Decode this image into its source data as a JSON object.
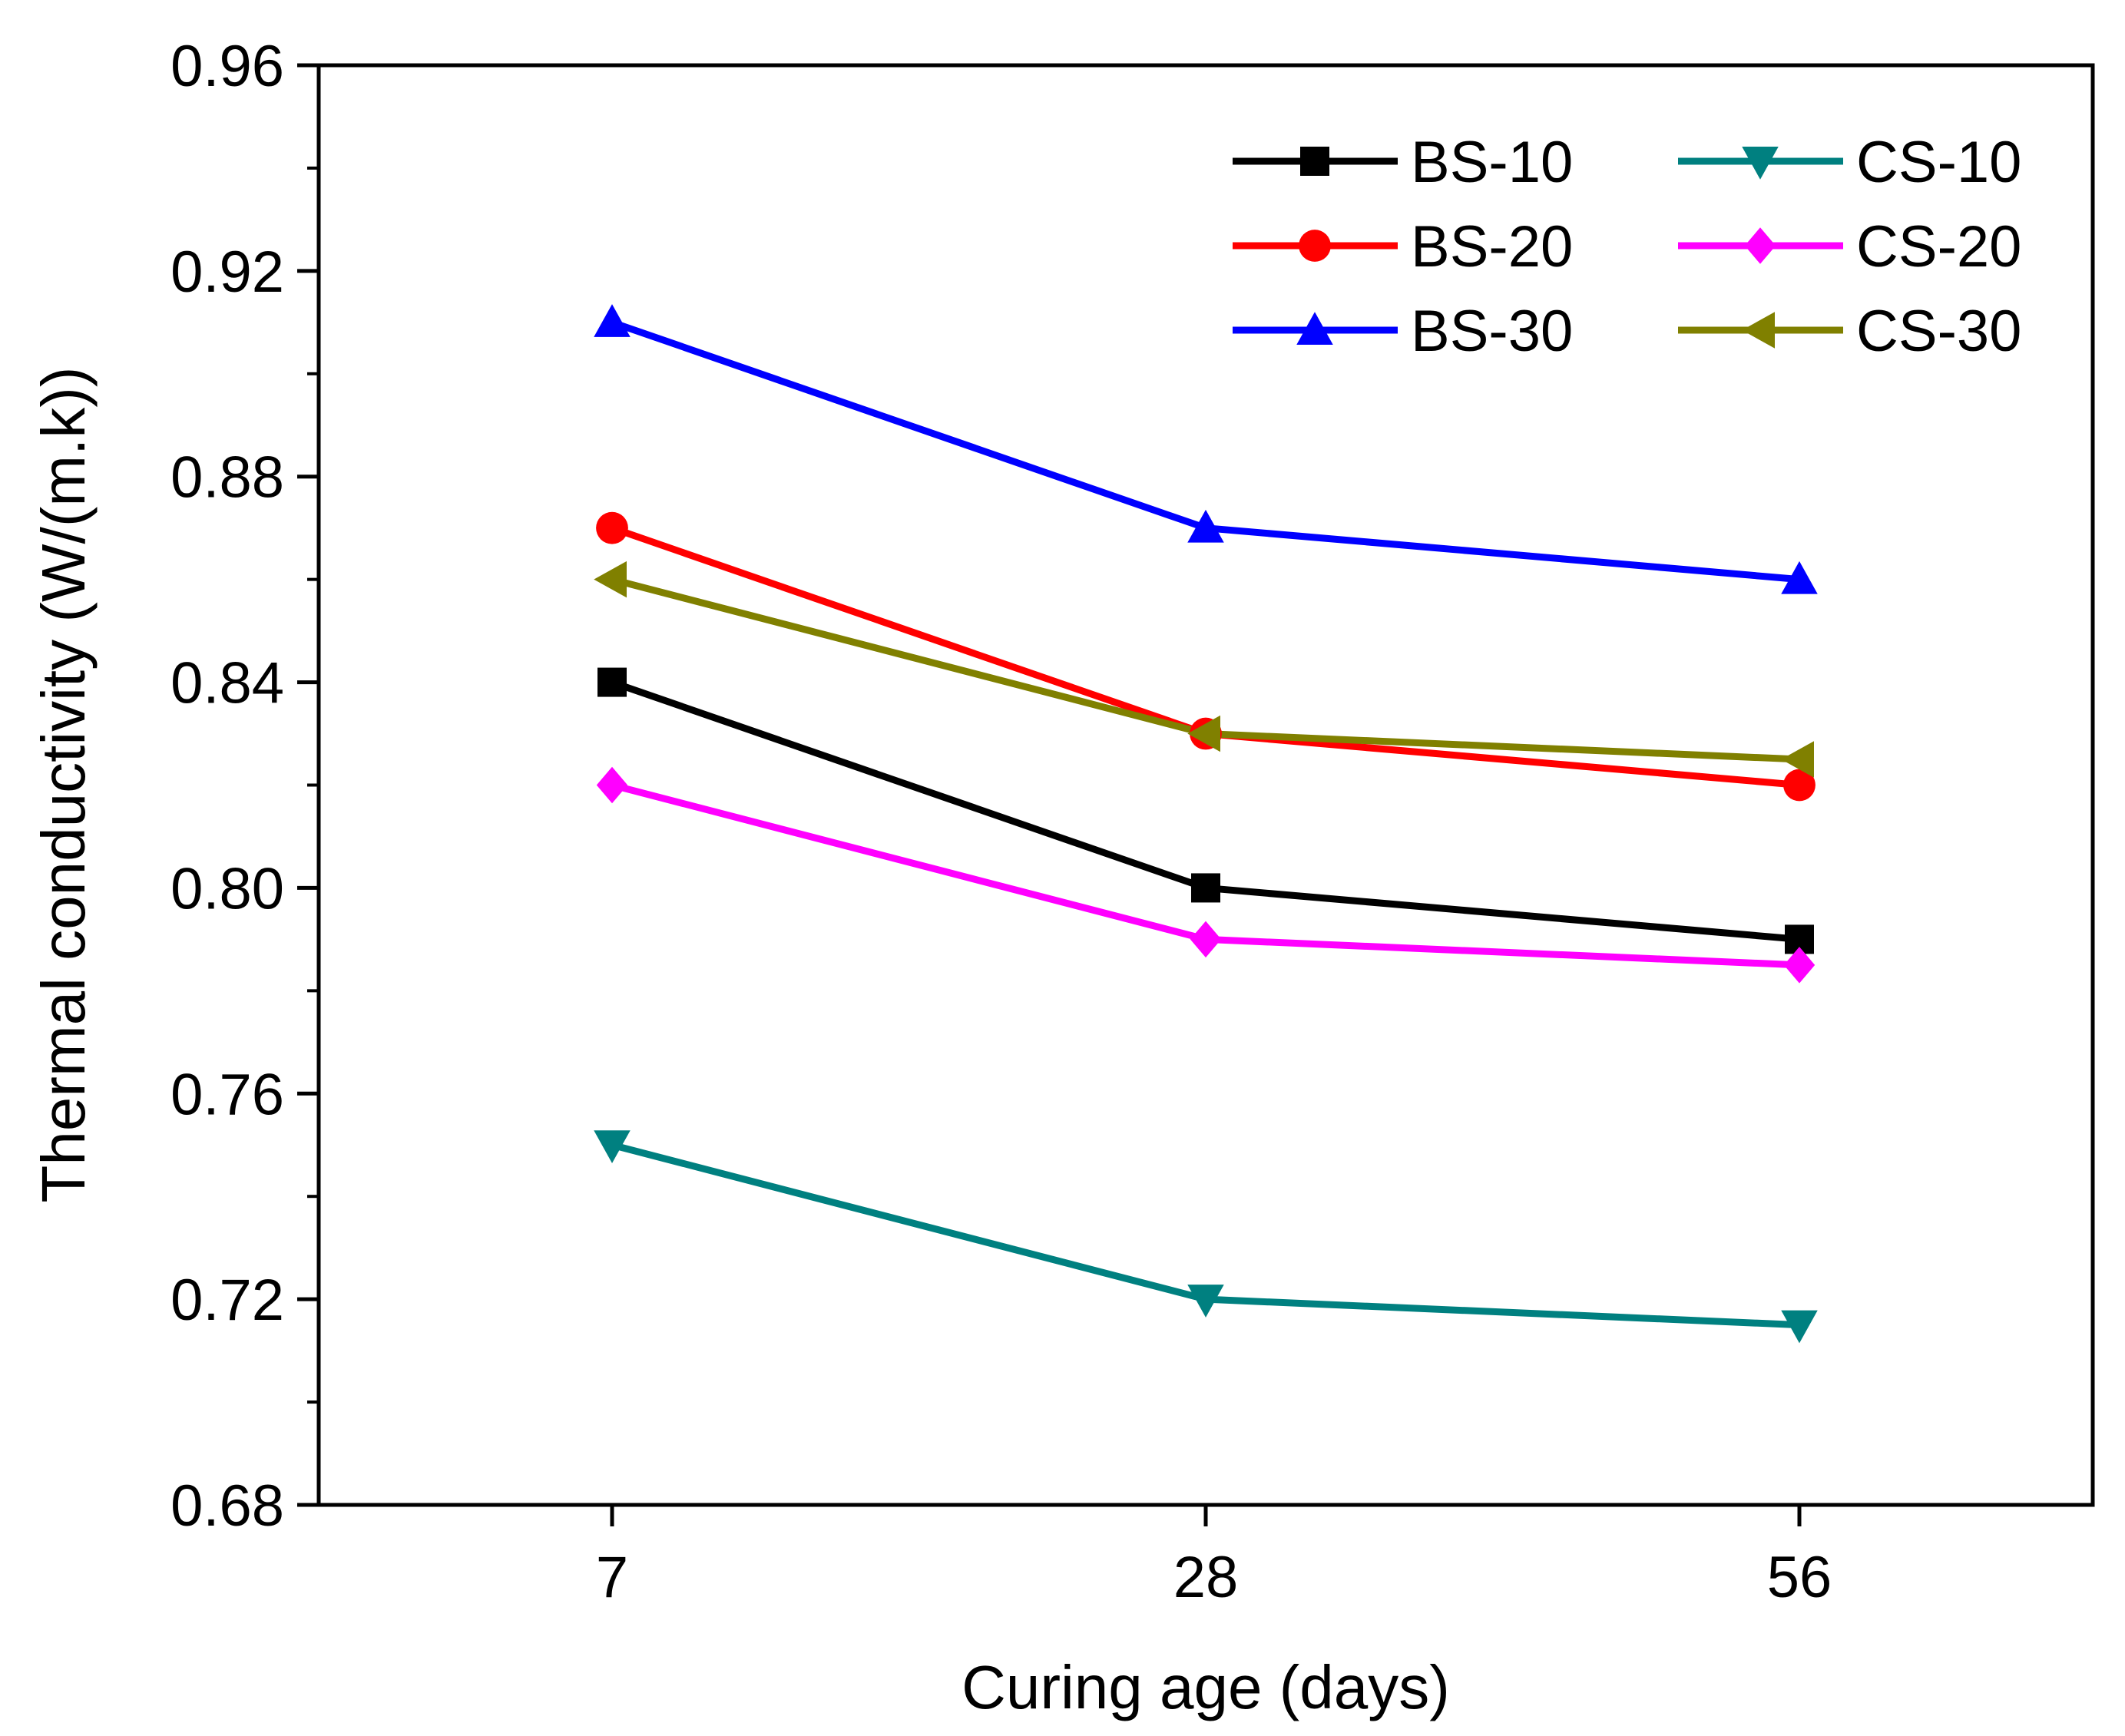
{
  "chart_data": {
    "type": "line",
    "title": "",
    "xlabel": "Curing age (days)",
    "ylabel": "Thermal conductivity (W/(m.k))",
    "categories": [
      "7",
      "28",
      "56"
    ],
    "ylim": [
      0.68,
      0.96
    ],
    "yticks": [
      "0.68",
      "0.72",
      "0.76",
      "0.80",
      "0.84",
      "0.88",
      "0.92",
      "0.96"
    ],
    "grid": false,
    "legend_position": "top-right",
    "series": [
      {
        "name": "BS-10",
        "color": "#000000",
        "marker": "square",
        "values": [
          0.84,
          0.8,
          0.79
        ]
      },
      {
        "name": "BS-20",
        "color": "#ff0000",
        "marker": "circle",
        "values": [
          0.87,
          0.83,
          0.82
        ]
      },
      {
        "name": "BS-30",
        "color": "#0000ff",
        "marker": "triangle-up",
        "values": [
          0.91,
          0.87,
          0.86
        ]
      },
      {
        "name": "CS-10",
        "color": "#008080",
        "marker": "triangle-down",
        "values": [
          0.75,
          0.72,
          0.715
        ]
      },
      {
        "name": "CS-20",
        "color": "#ff00ff",
        "marker": "diamond",
        "values": [
          0.82,
          0.79,
          0.785
        ]
      },
      {
        "name": "CS-30",
        "color": "#808000",
        "marker": "triangle-left",
        "values": [
          0.86,
          0.83,
          0.825
        ]
      }
    ]
  }
}
